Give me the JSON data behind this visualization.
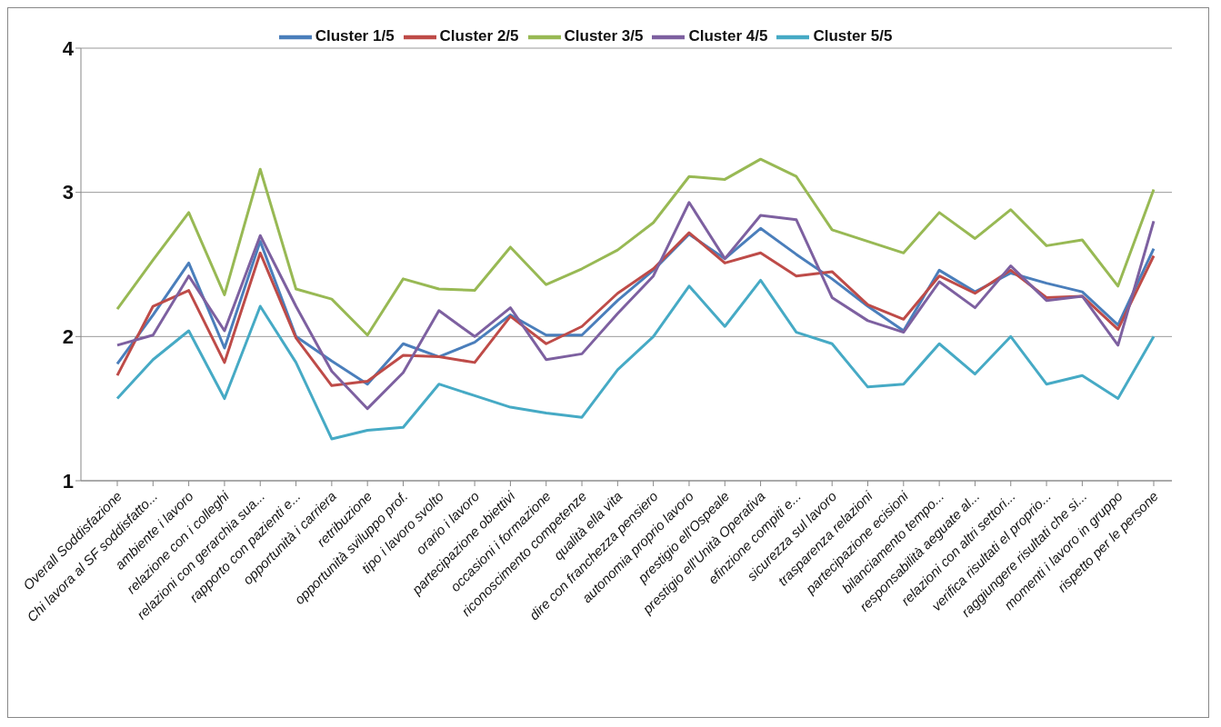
{
  "chart_data": {
    "type": "line",
    "categories": [
      "Overall Soddisfazione",
      "Chi lavora al SF soddisfatto...",
      "ambiente i lavoro",
      "relazione con i colleghi",
      "relazioni con gerarchia sua...",
      "rapporto con pazienti e...",
      "opportunità i carriera",
      "retribuzione",
      "opportunità sviluppo prof.",
      "tipo i lavoro svolto",
      "orario i lavoro",
      "partecipazione obiettivi",
      "occasioni i formazione",
      "riconoscimento competenze",
      "qualità ella vita",
      "dire con franchezza pensiero",
      "autonomia proprio lavoro",
      "prestigio ell'Ospeale",
      "prestigio ell'Unità Operativa",
      "efinzione compiti e...",
      "sicurezza sul lavoro",
      "trasparenza relazioni",
      "partecipazione ecisioni",
      "bilanciamento tempo...",
      "responsabilità aeguate al...",
      "relazioni con altri settori...",
      "verifica risultati el proprio...",
      "raggiungere risultati che si...",
      "momenti i lavoro in gruppo",
      "rispetto per le persone"
    ],
    "series": [
      {
        "name": "Cluster 1/5",
        "color": "#4a7ebb",
        "values": [
          1.81,
          2.15,
          2.51,
          1.92,
          2.66,
          2.0,
          1.83,
          1.67,
          1.95,
          1.86,
          1.96,
          2.15,
          2.01,
          2.01,
          2.25,
          2.46,
          2.71,
          2.54,
          2.75,
          2.57,
          2.4,
          2.21,
          2.04,
          2.46,
          2.31,
          2.44,
          2.37,
          2.31,
          2.08,
          2.61
        ]
      },
      {
        "name": "Cluster 2/5",
        "color": "#be4b48",
        "values": [
          1.73,
          2.21,
          2.32,
          1.82,
          2.58,
          1.99,
          1.66,
          1.69,
          1.87,
          1.86,
          1.82,
          2.14,
          1.95,
          2.07,
          2.3,
          2.47,
          2.72,
          2.51,
          2.58,
          2.42,
          2.45,
          2.22,
          2.12,
          2.42,
          2.3,
          2.46,
          2.27,
          2.28,
          2.05,
          2.56
        ]
      },
      {
        "name": "Cluster 3/5",
        "color": "#98b954",
        "values": [
          2.19,
          2.53,
          2.86,
          2.29,
          3.16,
          2.33,
          2.26,
          2.01,
          2.4,
          2.33,
          2.32,
          2.62,
          2.36,
          2.47,
          2.6,
          2.79,
          3.11,
          3.09,
          3.23,
          3.11,
          2.74,
          2.66,
          2.58,
          2.86,
          2.68,
          2.88,
          2.63,
          2.67,
          2.35,
          3.02
        ]
      },
      {
        "name": "Cluster 4/5",
        "color": "#7d60a0",
        "values": [
          1.94,
          2.01,
          2.42,
          2.04,
          2.7,
          2.21,
          1.76,
          1.5,
          1.75,
          2.18,
          2.0,
          2.2,
          1.84,
          1.88,
          2.16,
          2.42,
          2.93,
          2.54,
          2.84,
          2.81,
          2.27,
          2.11,
          2.03,
          2.38,
          2.2,
          2.49,
          2.25,
          2.28,
          1.94,
          2.8
        ]
      },
      {
        "name": "Cluster 5/5",
        "color": "#46aac5",
        "values": [
          1.57,
          1.84,
          2.04,
          1.57,
          2.21,
          1.82,
          1.29,
          1.35,
          1.37,
          1.67,
          1.59,
          1.51,
          1.47,
          1.44,
          1.77,
          2.0,
          2.35,
          2.07,
          2.39,
          2.03,
          1.95,
          1.65,
          1.67,
          1.95,
          1.74,
          2.0,
          1.67,
          1.73,
          1.57,
          2.0
        ]
      }
    ],
    "ylim": [
      1,
      4
    ],
    "yticks": [
      1,
      2,
      3,
      4
    ],
    "grid": "y",
    "legend": "top",
    "marker": "none",
    "line_style": "solid"
  }
}
